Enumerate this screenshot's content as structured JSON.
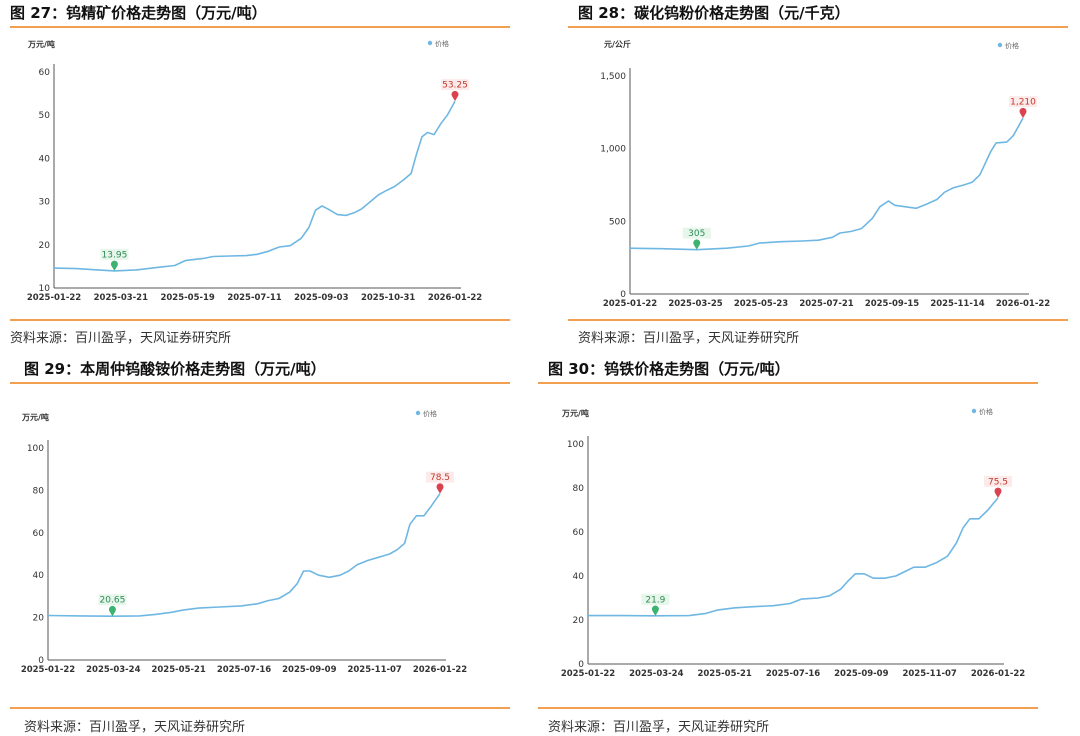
{
  "source_text": "资料来源：百川盈孚，天风证券研究所",
  "colors": {
    "line": "#6fb7e3",
    "accent": "#f0a050",
    "min_marker": "#3cb371",
    "max_marker": "#d9434f"
  },
  "charts": [
    {
      "title": "图 27：钨精矿价格走势图（万元/吨）",
      "unit": "万元/吨",
      "legend": "价格",
      "chart_data": {
        "type": "line",
        "title": "图 27：钨精矿价格走势图（万元/吨）",
        "ylabel": "万元/吨",
        "ylim": [
          10,
          60
        ],
        "yticks": [
          "10",
          "20",
          "30",
          "40",
          "50",
          "60"
        ],
        "xticks": [
          "2025-01-22",
          "2025-03-21",
          "2025-05-19",
          "2025-07-11",
          "2025-09-03",
          "2025-10-31",
          "2026-01-22"
        ],
        "min_label": "13.95",
        "max_label": "53.25",
        "series": [
          {
            "name": "价格",
            "points": [
              [
                0,
                14.6
              ],
              [
                20,
                14.5
              ],
              [
                40,
                14.2
              ],
              [
                55,
                13.95
              ],
              [
                75,
                14.2
              ],
              [
                95,
                14.8
              ],
              [
                110,
                15.2
              ],
              [
                120,
                16.4
              ],
              [
                135,
                16.8
              ],
              [
                145,
                17.3
              ],
              [
                160,
                17.4
              ],
              [
                175,
                17.5
              ],
              [
                185,
                17.8
              ],
              [
                195,
                18.5
              ],
              [
                205,
                19.5
              ],
              [
                215,
                19.8
              ],
              [
                225,
                21.5
              ],
              [
                232,
                24
              ],
              [
                238,
                28
              ],
              [
                244,
                29
              ],
              [
                250,
                28.2
              ],
              [
                258,
                27
              ],
              [
                266,
                26.8
              ],
              [
                274,
                27.5
              ],
              [
                280,
                28.3
              ],
              [
                288,
                30
              ],
              [
                295,
                31.5
              ],
              [
                302,
                32.5
              ],
              [
                310,
                33.5
              ],
              [
                318,
                35
              ],
              [
                325,
                36.5
              ],
              [
                330,
                41
              ],
              [
                335,
                45
              ],
              [
                340,
                46
              ],
              [
                346,
                45.5
              ],
              [
                352,
                48
              ],
              [
                358,
                50
              ],
              [
                365,
                53.25
              ]
            ]
          }
        ]
      }
    },
    {
      "title": "图 28：碳化钨粉价格走势图（元/千克）",
      "unit": "元/公斤",
      "legend": "价格",
      "chart_data": {
        "type": "line",
        "title": "图 28：碳化钨粉价格走势图（元/千克）",
        "ylabel": "元/公斤",
        "ylim": [
          0,
          1500
        ],
        "yticks": [
          "0",
          "500",
          "1,000",
          "1,500"
        ],
        "xticks": [
          "2025-01-22",
          "2025-03-25",
          "2025-05-23",
          "2025-07-21",
          "2025-09-15",
          "2025-11-14",
          "2026-01-22"
        ],
        "min_label": "305",
        "max_label": "1,210",
        "series": [
          {
            "name": "价格",
            "points": [
              [
                0,
                315
              ],
              [
                30,
                312
              ],
              [
                62,
                305
              ],
              [
                90,
                315
              ],
              [
                110,
                330
              ],
              [
                120,
                350
              ],
              [
                140,
                360
              ],
              [
                160,
                365
              ],
              [
                175,
                370
              ],
              [
                188,
                390
              ],
              [
                195,
                420
              ],
              [
                205,
                430
              ],
              [
                215,
                450
              ],
              [
                225,
                520
              ],
              [
                232,
                600
              ],
              [
                240,
                640
              ],
              [
                246,
                610
              ],
              [
                256,
                600
              ],
              [
                266,
                590
              ],
              [
                276,
                620
              ],
              [
                285,
                650
              ],
              [
                292,
                700
              ],
              [
                300,
                730
              ],
              [
                310,
                750
              ],
              [
                318,
                770
              ],
              [
                325,
                820
              ],
              [
                330,
                900
              ],
              [
                335,
                980
              ],
              [
                340,
                1040
              ],
              [
                350,
                1045
              ],
              [
                356,
                1090
              ],
              [
                365,
                1210
              ]
            ]
          }
        ]
      }
    },
    {
      "title": "图 29：本周仲钨酸铵价格走势图（万元/吨）",
      "unit": "万元/吨",
      "legend": "价格",
      "chart_data": {
        "type": "line",
        "title": "图 29：本周仲钨酸铵价格走势图（万元/吨）",
        "ylabel": "万元/吨",
        "ylim": [
          0,
          100
        ],
        "yticks": [
          "0",
          "20",
          "40",
          "60",
          "80",
          "100"
        ],
        "xticks": [
          "2025-01-22",
          "2025-03-24",
          "2025-05-21",
          "2025-07-16",
          "2025-09-09",
          "2025-11-07",
          "2026-01-22"
        ],
        "min_label": "20.65",
        "max_label": "78.5",
        "series": [
          {
            "name": "价格",
            "points": [
              [
                0,
                21
              ],
              [
                30,
                20.8
              ],
              [
                60,
                20.65
              ],
              [
                85,
                20.8
              ],
              [
                100,
                21.5
              ],
              [
                115,
                22.5
              ],
              [
                125,
                23.5
              ],
              [
                140,
                24.5
              ],
              [
                160,
                25
              ],
              [
                180,
                25.5
              ],
              [
                195,
                26.5
              ],
              [
                205,
                28
              ],
              [
                215,
                29
              ],
              [
                225,
                32
              ],
              [
                232,
                36
              ],
              [
                238,
                42
              ],
              [
                244,
                42
              ],
              [
                252,
                40
              ],
              [
                262,
                39
              ],
              [
                272,
                40
              ],
              [
                280,
                42
              ],
              [
                288,
                45
              ],
              [
                298,
                47
              ],
              [
                308,
                48.5
              ],
              [
                318,
                50
              ],
              [
                325,
                52
              ],
              [
                332,
                55
              ],
              [
                337,
                64
              ],
              [
                343,
                68
              ],
              [
                350,
                68
              ],
              [
                356,
                72
              ],
              [
                365,
                78.5
              ]
            ]
          }
        ]
      }
    },
    {
      "title": "图 30：钨铁价格走势图（万元/吨）",
      "unit": "万元/吨",
      "legend": "价格",
      "chart_data": {
        "type": "line",
        "title": "图 30：钨铁价格走势图（万元/吨）",
        "ylabel": "万元/吨",
        "ylim": [
          0,
          100
        ],
        "yticks": [
          "0",
          "20",
          "40",
          "60",
          "80",
          "100"
        ],
        "xticks": [
          "2025-01-22",
          "2025-03-24",
          "2025-05-21",
          "2025-07-16",
          "2025-09-09",
          "2025-11-07",
          "2026-01-22"
        ],
        "min_label": "21.9",
        "max_label": "75.5",
        "series": [
          {
            "name": "价格",
            "points": [
              [
                0,
                22
              ],
              [
                30,
                22
              ],
              [
                60,
                21.9
              ],
              [
                90,
                22
              ],
              [
                105,
                23
              ],
              [
                115,
                24.5
              ],
              [
                130,
                25.5
              ],
              [
                145,
                26
              ],
              [
                165,
                26.5
              ],
              [
                180,
                27.5
              ],
              [
                190,
                29.5
              ],
              [
                205,
                30
              ],
              [
                215,
                31
              ],
              [
                225,
                34
              ],
              [
                232,
                38
              ],
              [
                238,
                41
              ],
              [
                246,
                41
              ],
              [
                254,
                39
              ],
              [
                264,
                39
              ],
              [
                274,
                40
              ],
              [
                282,
                42
              ],
              [
                290,
                44
              ],
              [
                300,
                44
              ],
              [
                310,
                46
              ],
              [
                320,
                49
              ],
              [
                328,
                55
              ],
              [
                334,
                62
              ],
              [
                340,
                66
              ],
              [
                348,
                66
              ],
              [
                356,
                70
              ],
              [
                365,
                75.5
              ]
            ]
          }
        ]
      }
    }
  ]
}
